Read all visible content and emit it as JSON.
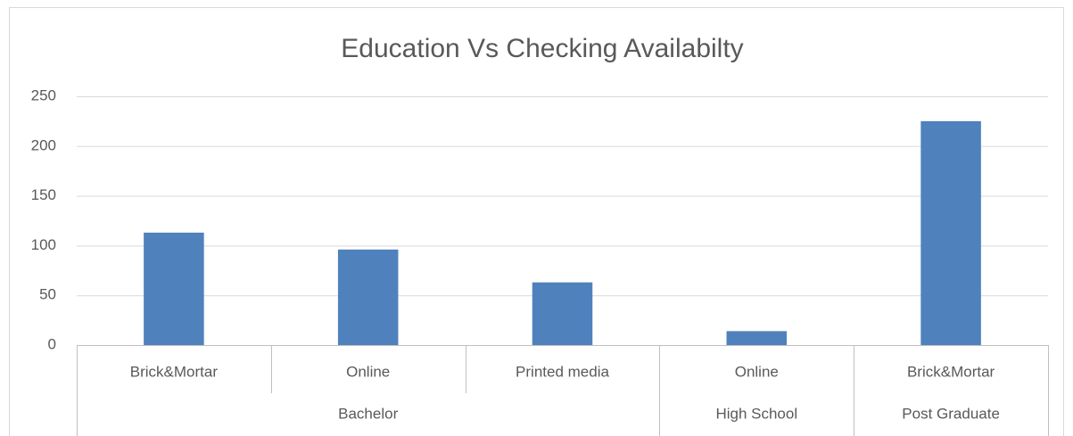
{
  "chart_data": {
    "type": "bar",
    "title": "Education Vs Checking Availabilty",
    "groups": [
      {
        "name": "Bachelor",
        "categories": [
          "Brick&Mortar",
          "Online",
          "Printed media"
        ],
        "values": [
          113,
          96,
          63
        ]
      },
      {
        "name": "High School",
        "categories": [
          "Online"
        ],
        "values": [
          14
        ]
      },
      {
        "name": "Post Graduate",
        "categories": [
          "Brick&Mortar"
        ],
        "values": [
          225
        ]
      }
    ],
    "color": "#4f81bd",
    "ylim": [
      0,
      250
    ],
    "yticks": [
      0,
      50,
      100,
      150,
      200,
      250
    ],
    "grid": true
  }
}
